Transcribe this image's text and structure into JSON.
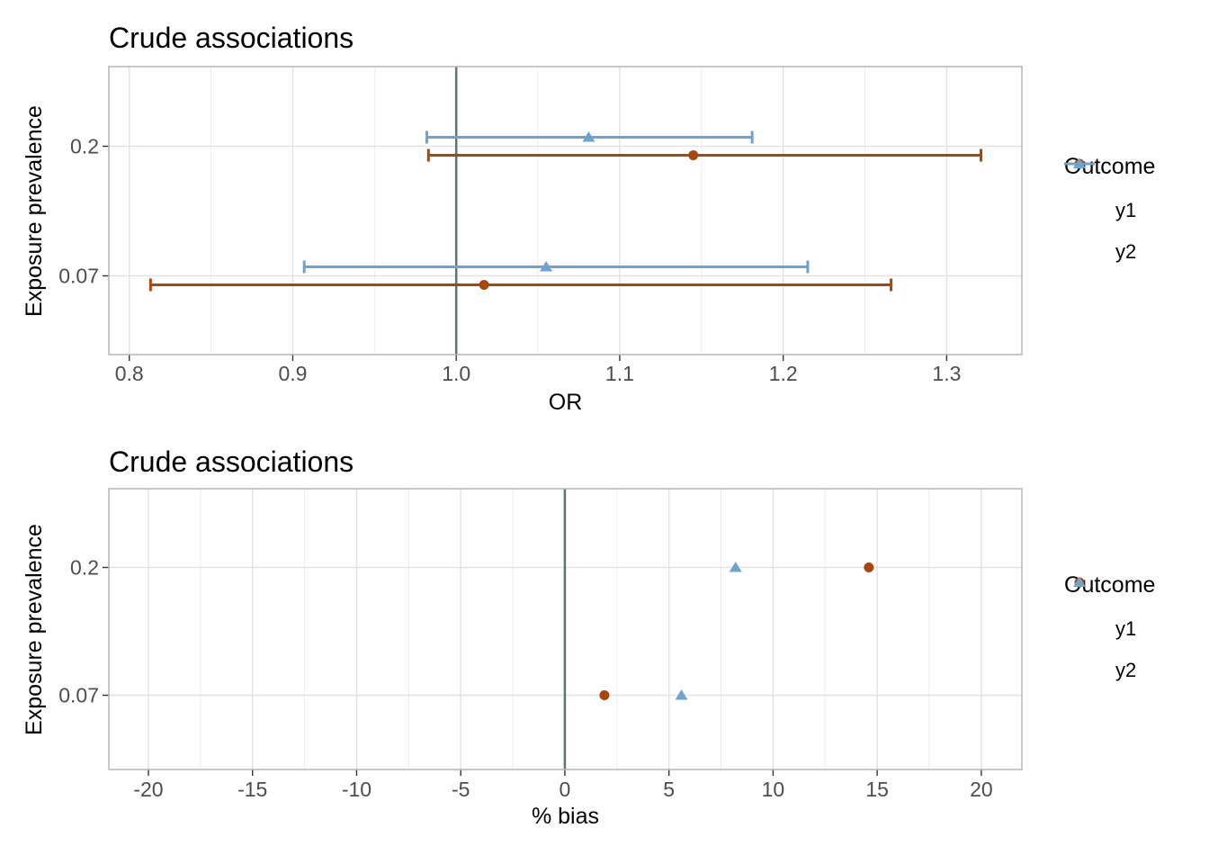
{
  "style": {
    "reference_line_color": "#5b7474",
    "grid_major_color": "#e2e2e2",
    "grid_minor_color": "#ededed",
    "panel_border_color": "#b5b5b5",
    "tick_mark_color": "#333333",
    "tick_label_color": "#4d4d4d",
    "panel_background": "#ffffff"
  },
  "chart_data": [
    {
      "type": "pointrange",
      "title": "Crude associations",
      "xlabel": "OR",
      "ylabel": "Exposure prevalence",
      "legend_title": "Outcome",
      "legend_position": "right",
      "grid": true,
      "y_categories": [
        "0.2",
        "0.07"
      ],
      "x_ticks": [
        0.8,
        0.9,
        1.0,
        1.1,
        1.2,
        1.3
      ],
      "x_tick_labels": [
        "0.8",
        "0.9",
        "1.0",
        "1.1",
        "1.2",
        "1.3"
      ],
      "xlim": [
        0.7875,
        1.346
      ],
      "reference_line_x": 1.0,
      "position_dodge": true,
      "series": [
        {
          "name": "y1",
          "marker": "circle",
          "color": "#aa460a",
          "points": [
            {
              "y": "0.2",
              "x": 1.145,
              "xmin": 0.983,
              "xmax": 1.321
            },
            {
              "y": "0.07",
              "x": 1.017,
              "xmin": 0.813,
              "xmax": 1.266
            }
          ]
        },
        {
          "name": "y2",
          "marker": "triangle",
          "color": "#6fa3cf",
          "points": [
            {
              "y": "0.2",
              "x": 1.081,
              "xmin": 0.982,
              "xmax": 1.181
            },
            {
              "y": "0.07",
              "x": 1.055,
              "xmin": 0.907,
              "xmax": 1.215
            }
          ]
        }
      ]
    },
    {
      "type": "scatter",
      "title": "Crude associations",
      "xlabel": "% bias",
      "ylabel": "Exposure prevalence",
      "legend_title": "Outcome",
      "legend_position": "right",
      "grid": true,
      "y_categories": [
        "0.2",
        "0.07"
      ],
      "x_ticks": [
        -20,
        -15,
        -10,
        -5,
        0,
        5,
        10,
        15,
        20
      ],
      "x_tick_labels": [
        "-20",
        "-15",
        "-10",
        "-5",
        "0",
        "5",
        "10",
        "15",
        "20"
      ],
      "xlim": [
        -21.9,
        21.95
      ],
      "reference_line_x": 0,
      "position_dodge": false,
      "series": [
        {
          "name": "y1",
          "marker": "circle",
          "color": "#aa460a",
          "points": [
            {
              "y": "0.2",
              "x": 14.6
            },
            {
              "y": "0.07",
              "x": 1.9
            }
          ]
        },
        {
          "name": "y2",
          "marker": "triangle",
          "color": "#6fa3cf",
          "points": [
            {
              "y": "0.2",
              "x": 8.2
            },
            {
              "y": "0.07",
              "x": 5.6
            }
          ]
        }
      ]
    }
  ]
}
